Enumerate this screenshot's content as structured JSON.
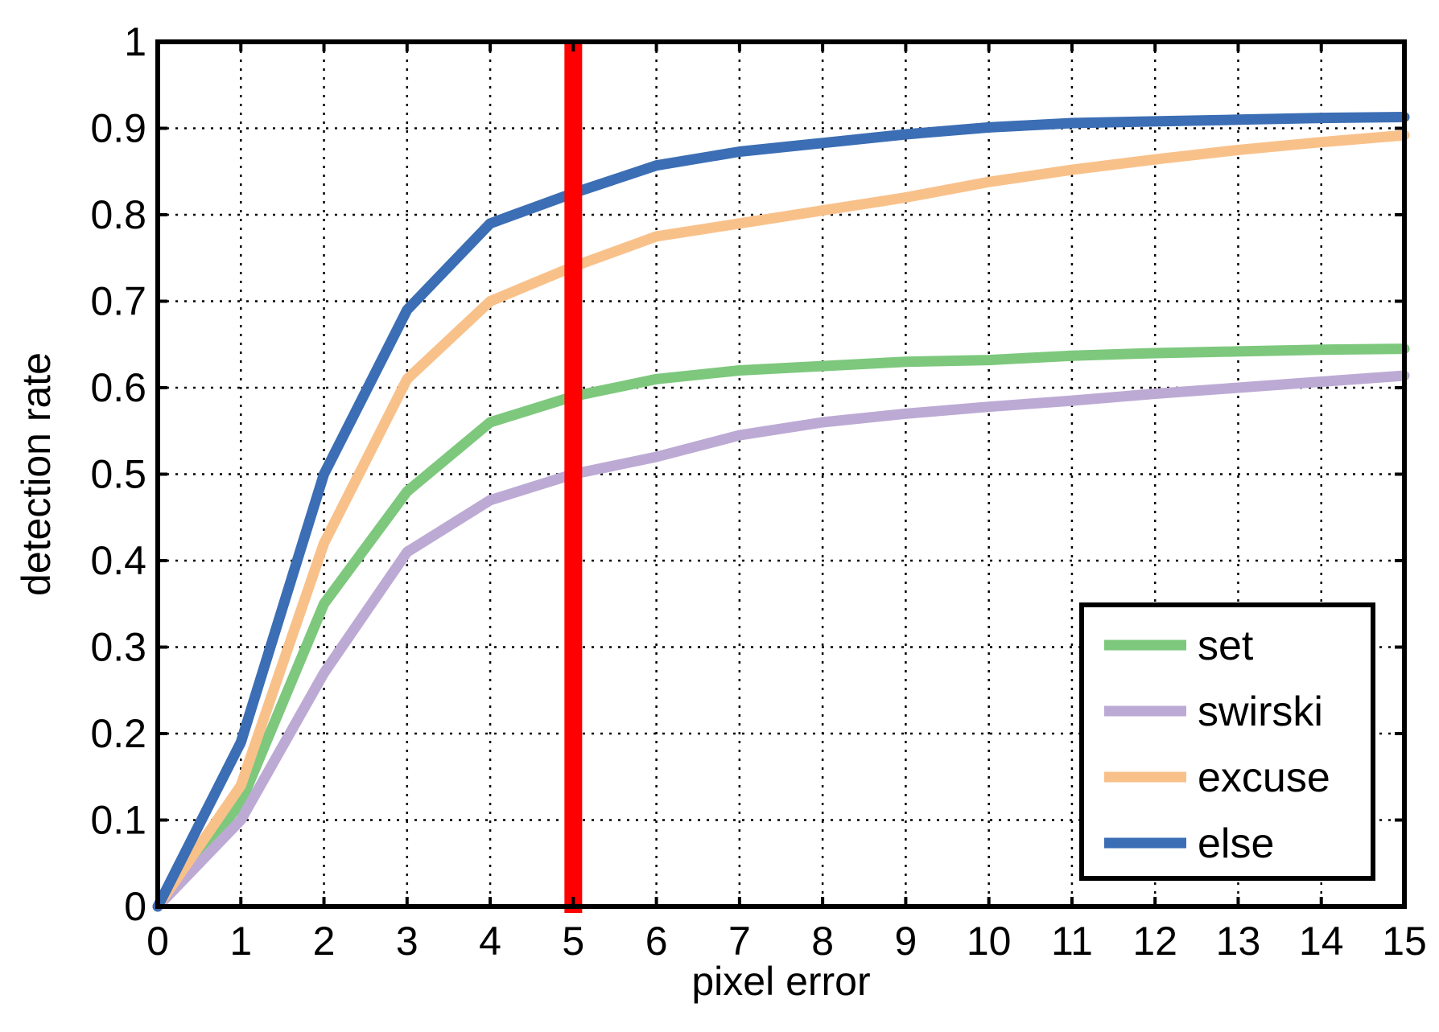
{
  "chart_data": {
    "type": "line",
    "title": "",
    "xlabel": "pixel error",
    "ylabel": "detection rate",
    "xlim": [
      0,
      15
    ],
    "ylim": [
      0,
      1
    ],
    "grid": true,
    "legend_position": "bottom-right",
    "x": [
      0,
      1,
      2,
      3,
      4,
      5,
      6,
      7,
      8,
      9,
      10,
      11,
      12,
      13,
      14,
      15
    ],
    "xticks": [
      "0",
      "1",
      "2",
      "3",
      "4",
      "5",
      "6",
      "7",
      "8",
      "9",
      "10",
      "11",
      "12",
      "13",
      "14",
      "15"
    ],
    "yticks": [
      "0",
      "0.1",
      "0.2",
      "0.3",
      "0.4",
      "0.5",
      "0.6",
      "0.7",
      "0.8",
      "0.9",
      "1"
    ],
    "series": [
      {
        "name": "set",
        "color": "#7dc87d",
        "values": [
          0,
          0.12,
          0.35,
          0.48,
          0.56,
          0.59,
          0.61,
          0.62,
          0.625,
          0.63,
          0.632,
          0.637,
          0.64,
          0.642,
          0.644,
          0.645
        ]
      },
      {
        "name": "swirski",
        "color": "#bcaad4",
        "values": [
          0,
          0.1,
          0.27,
          0.41,
          0.47,
          0.5,
          0.52,
          0.545,
          0.56,
          0.57,
          0.578,
          0.585,
          0.593,
          0.6,
          0.607,
          0.614
        ]
      },
      {
        "name": "excuse",
        "color": "#f9c18a",
        "values": [
          0,
          0.14,
          0.42,
          0.61,
          0.7,
          0.74,
          0.775,
          0.79,
          0.805,
          0.82,
          0.838,
          0.852,
          0.864,
          0.875,
          0.884,
          0.892
        ]
      },
      {
        "name": "else",
        "color": "#3b6eb4",
        "values": [
          0,
          0.19,
          0.5,
          0.69,
          0.79,
          0.825,
          0.857,
          0.873,
          0.883,
          0.893,
          0.901,
          0.906,
          0.908,
          0.91,
          0.912,
          0.913
        ]
      }
    ],
    "marker_line": {
      "x": 5,
      "color": "#ff0000"
    }
  }
}
